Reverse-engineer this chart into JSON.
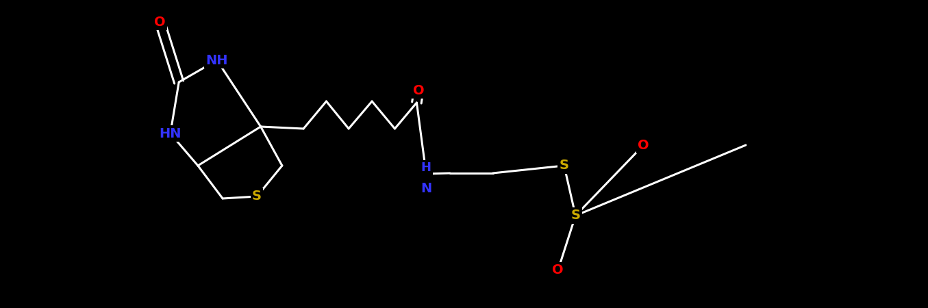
{
  "bg_color": "#000000",
  "bond_color": "#ffffff",
  "bond_lw": 2.2,
  "atom_colors": {
    "O": "#ff0000",
    "N": "#3333ff",
    "S": "#ccaa00",
    "C": "#ffffff"
  },
  "font_size": 14,
  "figsize": [
    13.55,
    4.5
  ],
  "dpi": 100,
  "xlim": [
    -0.2,
    13.6
  ],
  "ylim": [
    3.2,
    9.8
  ]
}
